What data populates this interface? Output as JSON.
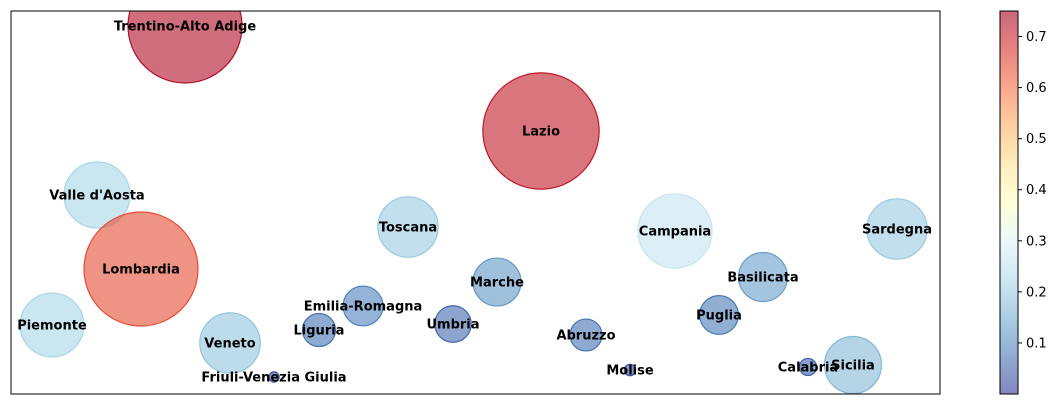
{
  "chart_data": {
    "type": "scatter",
    "title": "",
    "xlabel": "",
    "ylabel": "",
    "grid": false,
    "colormap": "RdYlBu_r",
    "colorbar": {
      "range": [
        0.0,
        0.75
      ],
      "ticks": [
        0.1,
        0.2,
        0.3,
        0.4,
        0.5,
        0.6,
        0.7
      ],
      "tick_labels": [
        "0.1",
        "0.2",
        "0.3",
        "0.4",
        "0.5",
        "0.6",
        "0.7"
      ]
    },
    "points": [
      {
        "label": "Trentino-Alto Adige",
        "value": 0.73,
        "size": 1.0
      },
      {
        "label": "Lazio",
        "value": 0.71,
        "size": 1.02
      },
      {
        "label": "Valle d'Aosta",
        "value": 0.22,
        "size": 0.58
      },
      {
        "label": "Toscana",
        "value": 0.2,
        "size": 0.53
      },
      {
        "label": "Campania",
        "value": 0.26,
        "size": 0.65
      },
      {
        "label": "Sardegna",
        "value": 0.2,
        "size": 0.53
      },
      {
        "label": "Lombardia",
        "value": 0.64,
        "size": 1.0
      },
      {
        "label": "Marche",
        "value": 0.12,
        "size": 0.42
      },
      {
        "label": "Basilicata",
        "value": 0.13,
        "size": 0.43
      },
      {
        "label": "Emilia-Romagna",
        "value": 0.09,
        "size": 0.35
      },
      {
        "label": "Piemonte",
        "value": 0.22,
        "size": 0.56
      },
      {
        "label": "Liguria",
        "value": 0.07,
        "size": 0.29
      },
      {
        "label": "Umbria",
        "value": 0.06,
        "size": 0.32
      },
      {
        "label": "Abruzzo",
        "value": 0.07,
        "size": 0.28
      },
      {
        "label": "Puglia",
        "value": 0.08,
        "size": 0.34
      },
      {
        "label": "Veneto",
        "value": 0.19,
        "size": 0.53
      },
      {
        "label": "Friuli-Venezia Giulia",
        "value": 0.03,
        "size": 0.09
      },
      {
        "label": "Molise",
        "value": 0.03,
        "size": 0.1
      },
      {
        "label": "Calabria",
        "value": 0.05,
        "size": 0.15
      },
      {
        "label": "Sicilia",
        "value": 0.17,
        "size": 0.5
      }
    ]
  }
}
